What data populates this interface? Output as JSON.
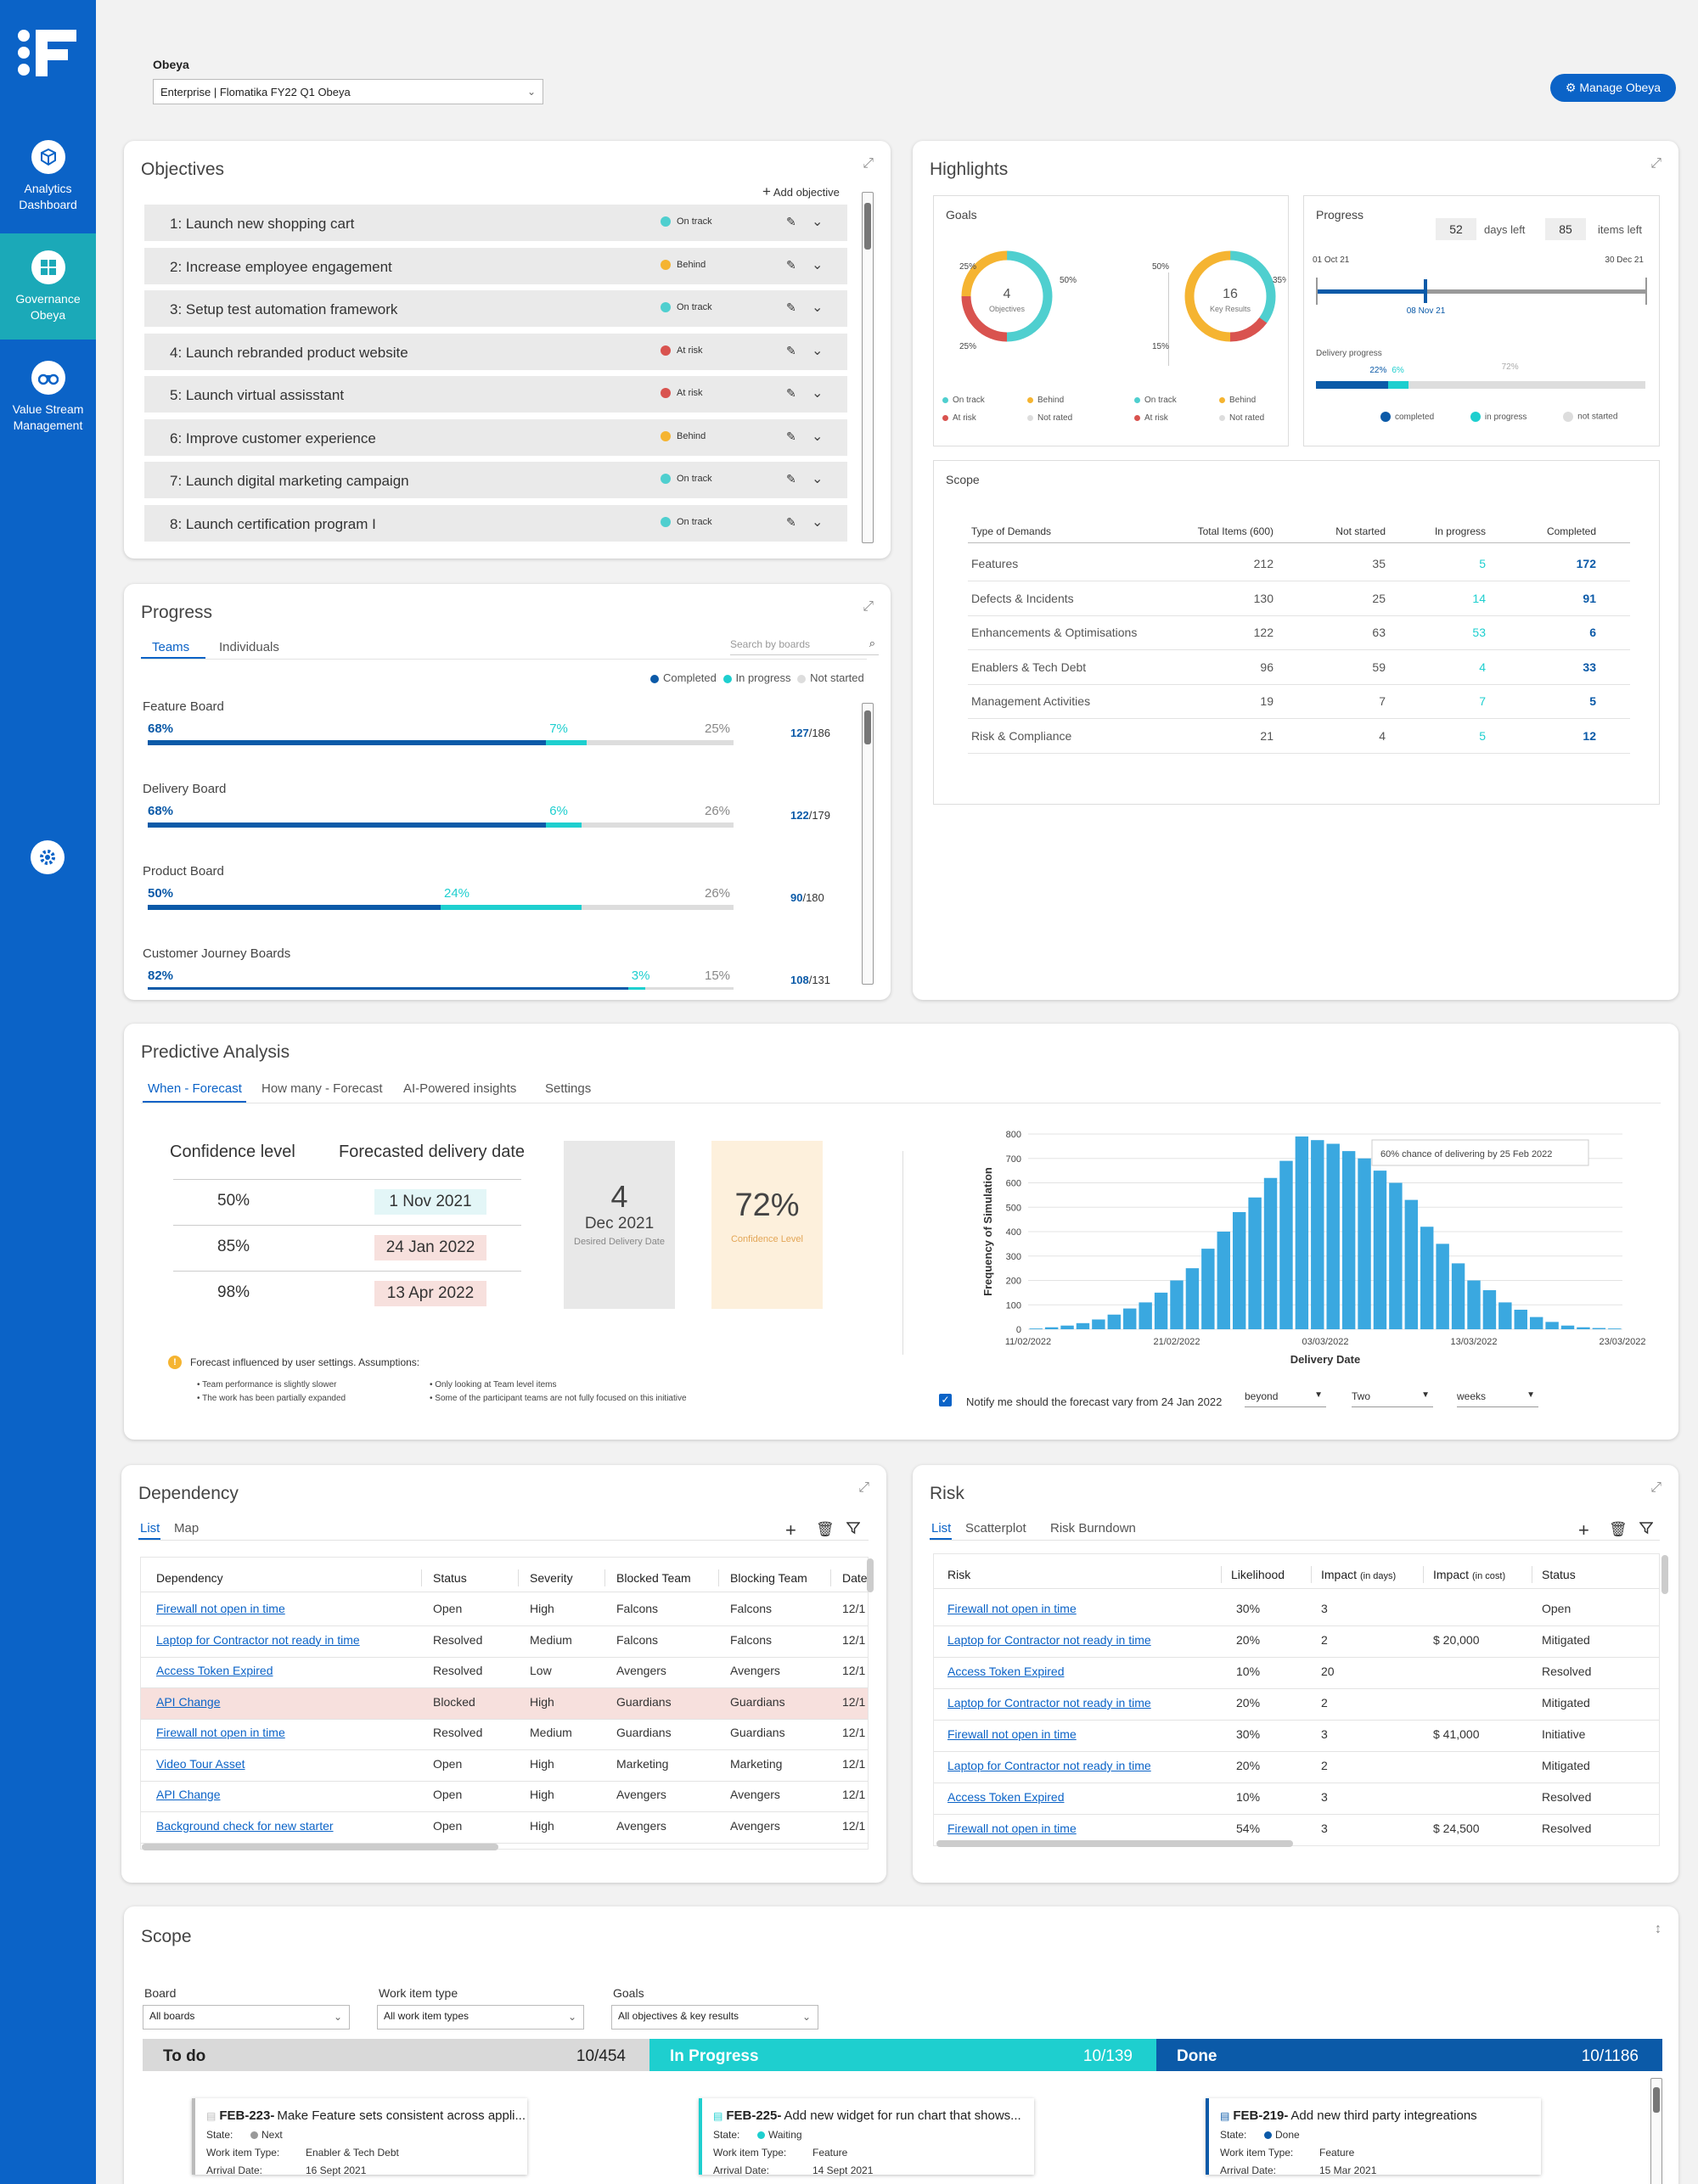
{
  "sidebar": {
    "items": [
      {
        "label": "Analytics Dashboard",
        "icon": "cube-icon"
      },
      {
        "label": "Governance Obeya",
        "icon": "grid-icon"
      },
      {
        "label": "Value Stream Management",
        "icon": "binoculars-icon"
      }
    ],
    "settings_icon": "gear-icon"
  },
  "header": {
    "label": "Obeya",
    "selected": "Enterprise | Flomatika FY22 Q1 Obeya",
    "manage_button": "Manage Obeya"
  },
  "objectives": {
    "title": "Objectives",
    "add_label": "Add objective",
    "items": [
      {
        "label": "1: Launch new shopping cart",
        "status": "On track"
      },
      {
        "label": "2: Increase employee engagement",
        "status": "Behind"
      },
      {
        "label": "3: Setup test automation framework",
        "status": "On track"
      },
      {
        "label": "4: Launch rebranded product website",
        "status": "At risk"
      },
      {
        "label": "5: Launch virtual assisstant",
        "status": "At risk"
      },
      {
        "label": "6: Improve customer experience",
        "status": "Behind"
      },
      {
        "label": "7: Launch digital marketing campaign",
        "status": "On track"
      },
      {
        "label": "8: Launch certification program I",
        "status": "On track"
      }
    ]
  },
  "status_colors": {
    "On track": "#4fcfcf",
    "Behind": "#f5b431",
    "At risk": "#d9534f",
    "Not rated": "#dddddd"
  },
  "progress": {
    "title": "Progress",
    "tabs": [
      "Teams",
      "Individuals"
    ],
    "search_placeholder": "Search by boards",
    "legend": [
      "Completed",
      "In progress",
      "Not started"
    ],
    "boards": [
      {
        "name": "Feature Board",
        "completed": 68,
        "in_progress": 7,
        "not_started": 25,
        "completed_label": "68%",
        "in_progress_label": "7%",
        "not_started_label": "25%",
        "count": "127",
        "total": "/186"
      },
      {
        "name": "Delivery Board",
        "completed": 68,
        "in_progress": 6,
        "not_started": 26,
        "completed_label": "68%",
        "in_progress_label": "6%",
        "not_started_label": "26%",
        "count": "122",
        "total": "/179"
      },
      {
        "name": "Product Board",
        "completed": 50,
        "in_progress": 24,
        "not_started": 26,
        "completed_label": "50%",
        "in_progress_label": "24%",
        "not_started_label": "26%",
        "count": "90",
        "total": "/180"
      },
      {
        "name": "Customer Journey Boards",
        "completed": 82,
        "in_progress": 3,
        "not_started": 15,
        "completed_label": "82%",
        "in_progress_label": "3%",
        "not_started_label": "15%",
        "count": "108",
        "total": "/131"
      }
    ]
  },
  "highlights": {
    "title": "Highlights",
    "goals": {
      "title": "Goals",
      "objectives": {
        "count": "4",
        "label": "Objectives",
        "segments": [
          {
            "status": "On track",
            "pct": 50
          },
          {
            "status": "At risk",
            "pct": 25
          },
          {
            "status": "Behind",
            "pct": 25
          }
        ],
        "labels": [
          "25%",
          "50%",
          "25%"
        ]
      },
      "key_results": {
        "count": "16",
        "label": "Key Results",
        "segments": [
          {
            "status": "On track",
            "pct": 35
          },
          {
            "status": "At risk",
            "pct": 15
          },
          {
            "status": "Behind",
            "pct": 50
          }
        ],
        "labels": [
          "50%",
          "35%",
          "15%"
        ]
      },
      "legend": [
        "On track",
        "At risk",
        "Behind",
        "Not rated"
      ]
    },
    "progress": {
      "title": "Progress",
      "days_left": "52",
      "days_left_label": "days left",
      "items_left": "85",
      "items_left_label": "items left",
      "start_date": "01 Oct 21",
      "end_date": "30 Dec 21",
      "today": "08 Nov 21",
      "today_fraction": 0.33,
      "delivery_label": "Delivery progress",
      "completed": 22,
      "in_progress": 6,
      "not_started": 72,
      "completed_label": "22%",
      "in_progress_label": "6%",
      "not_started_label": "72%",
      "legend": [
        "completed",
        "in progress",
        "not started"
      ]
    },
    "scope": {
      "title": "Scope",
      "headers": [
        "Type of Demands",
        "Total Items (600)",
        "Not started",
        "In progress",
        "Completed"
      ],
      "rows": [
        [
          "Features",
          "212",
          "35",
          "5",
          "172"
        ],
        [
          "Defects & Incidents",
          "130",
          "25",
          "14",
          "91"
        ],
        [
          "Enhancements & Optimisations",
          "122",
          "63",
          "53",
          "6"
        ],
        [
          "Enablers & Tech Debt",
          "96",
          "59",
          "4",
          "33"
        ],
        [
          "Management Activities",
          "19",
          "7",
          "7",
          "5"
        ],
        [
          "Risk & Compliance",
          "21",
          "4",
          "5",
          "12"
        ]
      ]
    }
  },
  "predictive": {
    "title": "Predictive Analysis",
    "tabs": [
      "When - Forecast",
      "How many - Forecast",
      "AI-Powered insights",
      "Settings"
    ],
    "col_confidence": "Confidence level",
    "col_date": "Forecasted delivery date",
    "rows": [
      {
        "level": "50%",
        "date": "1 Nov 2021",
        "color": "#e3f6f7"
      },
      {
        "level": "85%",
        "date": "24 Jan 2022",
        "color": "#f7e0dd"
      },
      {
        "level": "98%",
        "date": "13 Apr 2022",
        "color": "#f7e0dd"
      }
    ],
    "desired_day": "4",
    "desired_month": "Dec 2021",
    "desired_label": "Desired Delivery Date",
    "confidence": "72%",
    "confidence_label": "Confidence Level",
    "note_title": "Forecast influenced by user settings. Assumptions:",
    "notes_left": [
      "Team performance is slightly slower",
      "The work has been partially expanded"
    ],
    "notes_right": [
      "Only looking at Team level items",
      "Some of the participant teams are not fully focused on this initiative"
    ],
    "notify_label": "Notify me should the forecast vary from 24 Jan 2022",
    "notify_selects": [
      "beyond",
      "Two",
      "weeks"
    ]
  },
  "chart_data": {
    "type": "bar",
    "title": "",
    "xlabel": "Delivery Date",
    "ylabel": "Frequency of Simulation",
    "ylim": [
      0,
      800
    ],
    "yticks": [
      0,
      100,
      200,
      300,
      400,
      500,
      600,
      700,
      800
    ],
    "xticks": [
      "11/02/2022",
      "21/02/2022",
      "03/03/2022",
      "13/03/2022",
      "23/03/2022"
    ],
    "values": [
      3,
      8,
      15,
      25,
      40,
      60,
      85,
      110,
      150,
      200,
      250,
      330,
      400,
      480,
      540,
      620,
      690,
      790,
      775,
      760,
      730,
      700,
      650,
      600,
      530,
      420,
      350,
      270,
      200,
      160,
      110,
      80,
      50,
      30,
      15,
      8,
      5,
      3
    ],
    "annotation": "60% chance of delivering by 25 Feb 2022",
    "bar_color": "#3aa8e0",
    "grid": true
  },
  "dependency": {
    "title": "Dependency",
    "tabs": [
      "List",
      "Map"
    ],
    "headers": [
      "Dependency",
      "Status",
      "Severity",
      "Blocked Team",
      "Blocking Team",
      "Date"
    ],
    "rows": [
      [
        "Firewall not open in time",
        "Open",
        "High",
        "Falcons",
        "Falcons",
        "12/1"
      ],
      [
        "Laptop for Contractor not ready in time",
        "Resolved",
        "Medium",
        "Falcons",
        "Falcons",
        "12/1"
      ],
      [
        "Access Token Expired",
        "Resolved",
        "Low",
        "Avengers",
        "Avengers",
        "12/1"
      ],
      [
        "API Change",
        "Blocked",
        "High",
        "Guardians",
        "Guardians",
        "12/1"
      ],
      [
        "Firewall not open in time",
        "Resolved",
        "Medium",
        "Guardians",
        "Guardians",
        "12/1"
      ],
      [
        "Video Tour Asset",
        "Open",
        "High",
        "Marketing",
        "Marketing",
        "12/1"
      ],
      [
        "API Change",
        "Open",
        "High",
        "Avengers",
        "Avengers",
        "12/1"
      ],
      [
        "Background check for new starter",
        "Open",
        "High",
        "Avengers",
        "Avengers",
        "12/1"
      ]
    ]
  },
  "risk": {
    "title": "Risk",
    "tabs": [
      "List",
      "Scatterplot",
      "Risk Burndown"
    ],
    "headers": [
      "Risk",
      "Likelihood",
      "Impact",
      "(in days)",
      "Impact",
      "(in cost)",
      "Status"
    ],
    "rows": [
      [
        "Firewall not open in time",
        "30%",
        "3",
        "",
        "Open"
      ],
      [
        "Laptop for Contractor not ready in time",
        "20%",
        "2",
        "$ 20,000",
        "Mitigated"
      ],
      [
        "Access Token Expired",
        "10%",
        "20",
        "",
        "Resolved"
      ],
      [
        "Laptop for Contractor not ready in time",
        "20%",
        "2",
        "",
        "Mitigated"
      ],
      [
        "Firewall not open in time",
        "30%",
        "3",
        "$ 41,000",
        "Initiative"
      ],
      [
        "Laptop for Contractor not ready in time",
        "20%",
        "2",
        "",
        "Mitigated"
      ],
      [
        "Access Token Expired",
        "10%",
        "3",
        "",
        "Resolved"
      ],
      [
        "Firewall not open in time",
        "54%",
        "3",
        "$ 24,500",
        "Resolved"
      ]
    ]
  },
  "scope_bottom": {
    "title": "Scope",
    "filters": [
      {
        "label": "Board",
        "value": "All boards"
      },
      {
        "label": "Work item type",
        "value": "All work item types"
      },
      {
        "label": "Goals",
        "value": "All objectives & key results"
      }
    ],
    "columns": [
      {
        "name": "To do",
        "count": "10/454",
        "color": "#d9d9d9",
        "text": "#222"
      },
      {
        "name": "In Progress",
        "count": "10/139",
        "color": "#1ecfcf",
        "text": "#fff"
      },
      {
        "name": "Done",
        "count": "10/1186",
        "color": "#0b5aa8",
        "text": "#fff"
      }
    ],
    "cards": [
      {
        "id": "FEB-223-",
        "title": "Make Feature sets consistent across appli...",
        "state": "Next",
        "state_color": "#999",
        "type": "Enabler & Tech Debt",
        "arrival": "16 Sept 2021",
        "accent": "#bbb"
      },
      {
        "id": "FEB-225-",
        "title": "Add new widget for run chart that shows...",
        "state": "Waiting",
        "state_color": "#1ecfcf",
        "type": "Feature",
        "arrival": "14 Sept 2021",
        "accent": "#1ecfcf"
      },
      {
        "id": "FEB-219-",
        "title": "Add new third party integreations",
        "state": "Done",
        "state_color": "#0b5aa8",
        "type": "Feature",
        "arrival": "15 Mar 2021",
        "accent": "#0b5aa8"
      }
    ],
    "card_labels": {
      "state": "State:",
      "type": "Work item Type:",
      "arrival": "Arrival Date:"
    }
  }
}
